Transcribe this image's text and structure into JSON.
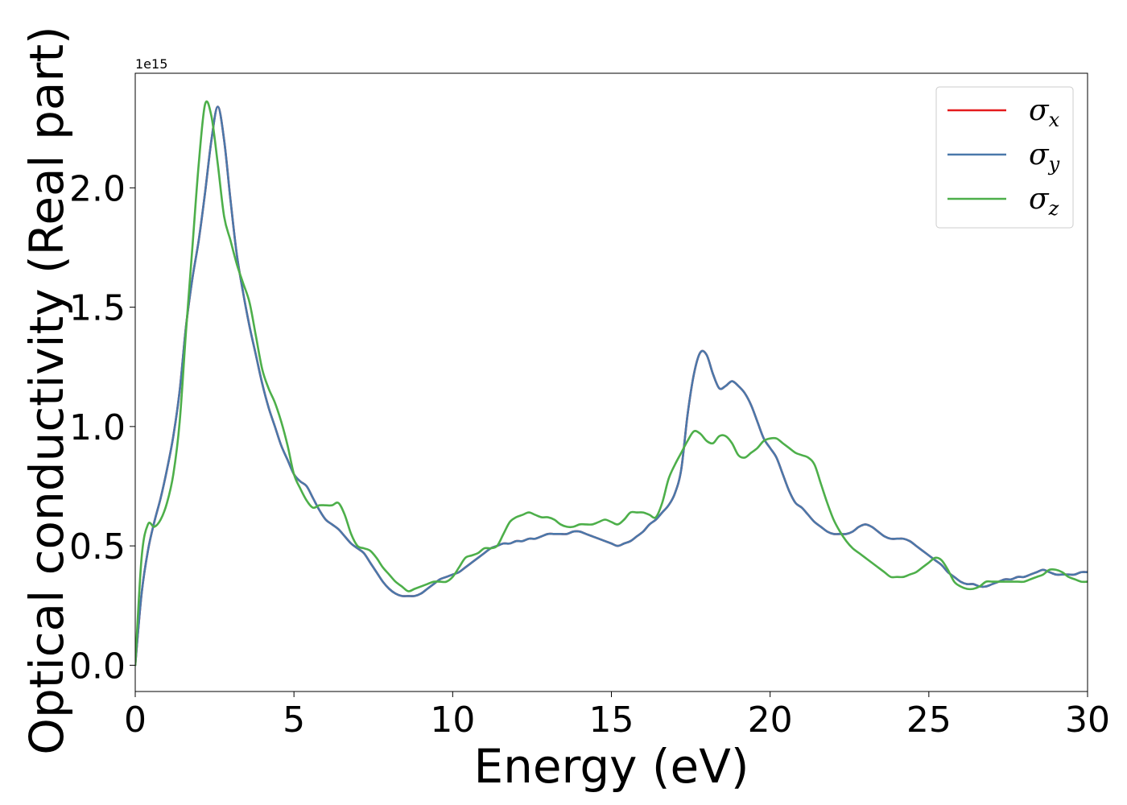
{
  "chart_data": {
    "type": "line",
    "xlabel": "Energy (eV)",
    "ylabel": "Optical conductivity (Real part)",
    "y_offset_label": "1e15",
    "xlim": [
      0,
      30
    ],
    "ylim": [
      -0.11,
      2.48
    ],
    "x_ticks": [
      0,
      5,
      10,
      15,
      20,
      25,
      30
    ],
    "x_tick_labels": [
      "0",
      "5",
      "10",
      "15",
      "20",
      "25",
      "30"
    ],
    "y_ticks": [
      0.0,
      0.5,
      1.0,
      1.5,
      2.0
    ],
    "y_tick_labels": [
      "0.0",
      "0.5",
      "1.0",
      "1.5",
      "2.0"
    ],
    "grid": false,
    "legend_position": "top-right",
    "series": [
      {
        "name": "σ",
        "subscript": "x",
        "color": "#e41a1c",
        "x": [
          0,
          0.2,
          0.4,
          0.6,
          0.8,
          1.0,
          1.2,
          1.4,
          1.6,
          1.8,
          2.0,
          2.2,
          2.4,
          2.6,
          2.8,
          3.0,
          3.2,
          3.4,
          3.6,
          3.8,
          4.0,
          4.2,
          4.4,
          4.6,
          4.8,
          5.0,
          5.2,
          5.4,
          5.6,
          5.8,
          6.0,
          6.2,
          6.4,
          6.6,
          6.8,
          7.0,
          7.2,
          7.4,
          7.6,
          7.8,
          8.0,
          8.2,
          8.4,
          8.6,
          8.8,
          9.0,
          9.2,
          9.4,
          9.6,
          9.8,
          10.0,
          10.2,
          10.4,
          10.6,
          10.8,
          11.0,
          11.2,
          11.4,
          11.6,
          11.8,
          12.0,
          12.2,
          12.4,
          12.6,
          12.8,
          13.0,
          13.2,
          13.4,
          13.6,
          13.8,
          14.0,
          14.2,
          14.4,
          14.6,
          14.8,
          15.0,
          15.2,
          15.4,
          15.6,
          15.8,
          16.0,
          16.2,
          16.4,
          16.6,
          16.8,
          17.0,
          17.2,
          17.4,
          17.6,
          17.8,
          18.0,
          18.2,
          18.4,
          18.6,
          18.8,
          19.0,
          19.2,
          19.4,
          19.6,
          19.8,
          20.0,
          20.2,
          20.4,
          20.6,
          20.8,
          21.0,
          21.2,
          21.4,
          21.6,
          21.8,
          22.0,
          22.2,
          22.4,
          22.6,
          22.8,
          23.0,
          23.2,
          23.4,
          23.6,
          23.8,
          24.0,
          24.2,
          24.4,
          24.6,
          24.8,
          25.0,
          25.2,
          25.4,
          25.6,
          25.8,
          26.0,
          26.2,
          26.4,
          26.6,
          26.8,
          27.0,
          27.2,
          27.4,
          27.6,
          27.8,
          28.0,
          28.2,
          28.4,
          28.6,
          28.8,
          29.0,
          29.2,
          29.4,
          29.6,
          29.8,
          30.0
        ],
        "y": [
          0.0,
          0.3,
          0.48,
          0.6,
          0.7,
          0.82,
          0.96,
          1.15,
          1.42,
          1.62,
          1.78,
          1.98,
          2.2,
          2.34,
          2.2,
          1.95,
          1.72,
          1.56,
          1.42,
          1.3,
          1.18,
          1.08,
          1.0,
          0.92,
          0.86,
          0.8,
          0.77,
          0.75,
          0.7,
          0.65,
          0.61,
          0.59,
          0.57,
          0.54,
          0.51,
          0.49,
          0.47,
          0.43,
          0.39,
          0.35,
          0.32,
          0.3,
          0.29,
          0.29,
          0.29,
          0.3,
          0.32,
          0.34,
          0.36,
          0.37,
          0.38,
          0.39,
          0.41,
          0.43,
          0.45,
          0.47,
          0.49,
          0.5,
          0.51,
          0.51,
          0.52,
          0.52,
          0.53,
          0.53,
          0.54,
          0.55,
          0.55,
          0.55,
          0.55,
          0.56,
          0.56,
          0.55,
          0.54,
          0.53,
          0.52,
          0.51,
          0.5,
          0.51,
          0.52,
          0.54,
          0.56,
          0.59,
          0.61,
          0.64,
          0.67,
          0.72,
          0.82,
          1.05,
          1.22,
          1.31,
          1.3,
          1.22,
          1.16,
          1.17,
          1.19,
          1.17,
          1.14,
          1.09,
          1.02,
          0.95,
          0.91,
          0.87,
          0.8,
          0.73,
          0.68,
          0.66,
          0.63,
          0.6,
          0.58,
          0.56,
          0.55,
          0.55,
          0.55,
          0.56,
          0.58,
          0.59,
          0.58,
          0.56,
          0.54,
          0.53,
          0.53,
          0.53,
          0.52,
          0.5,
          0.48,
          0.46,
          0.44,
          0.42,
          0.39,
          0.37,
          0.35,
          0.34,
          0.34,
          0.33,
          0.33,
          0.34,
          0.35,
          0.36,
          0.36,
          0.37,
          0.37,
          0.38,
          0.39,
          0.4,
          0.39,
          0.38,
          0.38,
          0.38,
          0.38,
          0.39,
          0.39
        ]
      },
      {
        "name": "σ",
        "subscript": "y",
        "color": "#4a78aa",
        "x": [
          0,
          0.2,
          0.4,
          0.6,
          0.8,
          1.0,
          1.2,
          1.4,
          1.6,
          1.8,
          2.0,
          2.2,
          2.4,
          2.6,
          2.8,
          3.0,
          3.2,
          3.4,
          3.6,
          3.8,
          4.0,
          4.2,
          4.4,
          4.6,
          4.8,
          5.0,
          5.2,
          5.4,
          5.6,
          5.8,
          6.0,
          6.2,
          6.4,
          6.6,
          6.8,
          7.0,
          7.2,
          7.4,
          7.6,
          7.8,
          8.0,
          8.2,
          8.4,
          8.6,
          8.8,
          9.0,
          9.2,
          9.4,
          9.6,
          9.8,
          10.0,
          10.2,
          10.4,
          10.6,
          10.8,
          11.0,
          11.2,
          11.4,
          11.6,
          11.8,
          12.0,
          12.2,
          12.4,
          12.6,
          12.8,
          13.0,
          13.2,
          13.4,
          13.6,
          13.8,
          14.0,
          14.2,
          14.4,
          14.6,
          14.8,
          15.0,
          15.2,
          15.4,
          15.6,
          15.8,
          16.0,
          16.2,
          16.4,
          16.6,
          16.8,
          17.0,
          17.2,
          17.4,
          17.6,
          17.8,
          18.0,
          18.2,
          18.4,
          18.6,
          18.8,
          19.0,
          19.2,
          19.4,
          19.6,
          19.8,
          20.0,
          20.2,
          20.4,
          20.6,
          20.8,
          21.0,
          21.2,
          21.4,
          21.6,
          21.8,
          22.0,
          22.2,
          22.4,
          22.6,
          22.8,
          23.0,
          23.2,
          23.4,
          23.6,
          23.8,
          24.0,
          24.2,
          24.4,
          24.6,
          24.8,
          25.0,
          25.2,
          25.4,
          25.6,
          25.8,
          26.0,
          26.2,
          26.4,
          26.6,
          26.8,
          27.0,
          27.2,
          27.4,
          27.6,
          27.8,
          28.0,
          28.2,
          28.4,
          28.6,
          28.8,
          29.0,
          29.2,
          29.4,
          29.6,
          29.8,
          30.0
        ],
        "y": [
          0.0,
          0.3,
          0.48,
          0.6,
          0.7,
          0.82,
          0.96,
          1.15,
          1.42,
          1.62,
          1.78,
          1.98,
          2.2,
          2.34,
          2.2,
          1.95,
          1.72,
          1.56,
          1.42,
          1.3,
          1.18,
          1.08,
          1.0,
          0.92,
          0.86,
          0.8,
          0.77,
          0.75,
          0.7,
          0.65,
          0.61,
          0.59,
          0.57,
          0.54,
          0.51,
          0.49,
          0.47,
          0.43,
          0.39,
          0.35,
          0.32,
          0.3,
          0.29,
          0.29,
          0.29,
          0.3,
          0.32,
          0.34,
          0.36,
          0.37,
          0.38,
          0.39,
          0.41,
          0.43,
          0.45,
          0.47,
          0.49,
          0.5,
          0.51,
          0.51,
          0.52,
          0.52,
          0.53,
          0.53,
          0.54,
          0.55,
          0.55,
          0.55,
          0.55,
          0.56,
          0.56,
          0.55,
          0.54,
          0.53,
          0.52,
          0.51,
          0.5,
          0.51,
          0.52,
          0.54,
          0.56,
          0.59,
          0.61,
          0.64,
          0.67,
          0.72,
          0.82,
          1.05,
          1.22,
          1.31,
          1.3,
          1.22,
          1.16,
          1.17,
          1.19,
          1.17,
          1.14,
          1.09,
          1.02,
          0.95,
          0.91,
          0.87,
          0.8,
          0.73,
          0.68,
          0.66,
          0.63,
          0.6,
          0.58,
          0.56,
          0.55,
          0.55,
          0.55,
          0.56,
          0.58,
          0.59,
          0.58,
          0.56,
          0.54,
          0.53,
          0.53,
          0.53,
          0.52,
          0.5,
          0.48,
          0.46,
          0.44,
          0.42,
          0.39,
          0.37,
          0.35,
          0.34,
          0.34,
          0.33,
          0.33,
          0.34,
          0.35,
          0.36,
          0.36,
          0.37,
          0.37,
          0.38,
          0.39,
          0.4,
          0.39,
          0.38,
          0.38,
          0.38,
          0.38,
          0.39,
          0.39
        ]
      },
      {
        "name": "σ",
        "subscript": "z",
        "color": "#4daf4a",
        "x": [
          0,
          0.2,
          0.4,
          0.6,
          0.8,
          1.0,
          1.2,
          1.4,
          1.6,
          1.8,
          2.0,
          2.2,
          2.4,
          2.6,
          2.8,
          3.0,
          3.2,
          3.4,
          3.6,
          3.8,
          4.0,
          4.2,
          4.4,
          4.6,
          4.8,
          5.0,
          5.2,
          5.4,
          5.6,
          5.8,
          6.0,
          6.2,
          6.4,
          6.6,
          6.8,
          7.0,
          7.2,
          7.4,
          7.6,
          7.8,
          8.0,
          8.2,
          8.4,
          8.6,
          8.8,
          9.0,
          9.2,
          9.4,
          9.6,
          9.8,
          10.0,
          10.2,
          10.4,
          10.6,
          10.8,
          11.0,
          11.2,
          11.4,
          11.6,
          11.8,
          12.0,
          12.2,
          12.4,
          12.6,
          12.8,
          13.0,
          13.2,
          13.4,
          13.6,
          13.8,
          14.0,
          14.2,
          14.4,
          14.6,
          14.8,
          15.0,
          15.2,
          15.4,
          15.6,
          15.8,
          16.0,
          16.2,
          16.4,
          16.6,
          16.8,
          17.0,
          17.2,
          17.4,
          17.6,
          17.8,
          18.0,
          18.2,
          18.4,
          18.6,
          18.8,
          19.0,
          19.2,
          19.4,
          19.6,
          19.8,
          20.0,
          20.2,
          20.4,
          20.6,
          20.8,
          21.0,
          21.2,
          21.4,
          21.6,
          21.8,
          22.0,
          22.2,
          22.4,
          22.6,
          22.8,
          23.0,
          23.2,
          23.4,
          23.6,
          23.8,
          24.0,
          24.2,
          24.4,
          24.6,
          24.8,
          25.0,
          25.2,
          25.4,
          25.6,
          25.8,
          26.0,
          26.2,
          26.4,
          26.6,
          26.8,
          27.0,
          27.2,
          27.4,
          27.6,
          27.8,
          28.0,
          28.2,
          28.4,
          28.6,
          28.8,
          29.0,
          29.2,
          29.4,
          29.6,
          29.8,
          30.0
        ],
        "y": [
          0.0,
          0.45,
          0.59,
          0.58,
          0.61,
          0.68,
          0.8,
          1.02,
          1.4,
          1.75,
          2.1,
          2.35,
          2.3,
          2.1,
          1.88,
          1.78,
          1.68,
          1.6,
          1.52,
          1.38,
          1.24,
          1.16,
          1.1,
          1.02,
          0.92,
          0.8,
          0.74,
          0.69,
          0.66,
          0.67,
          0.67,
          0.67,
          0.68,
          0.63,
          0.55,
          0.5,
          0.49,
          0.48,
          0.45,
          0.41,
          0.38,
          0.35,
          0.33,
          0.31,
          0.32,
          0.33,
          0.34,
          0.35,
          0.35,
          0.35,
          0.37,
          0.41,
          0.45,
          0.46,
          0.47,
          0.49,
          0.49,
          0.5,
          0.55,
          0.6,
          0.62,
          0.63,
          0.64,
          0.63,
          0.62,
          0.62,
          0.61,
          0.59,
          0.58,
          0.58,
          0.59,
          0.59,
          0.59,
          0.6,
          0.61,
          0.6,
          0.59,
          0.61,
          0.64,
          0.64,
          0.64,
          0.63,
          0.62,
          0.68,
          0.78,
          0.84,
          0.89,
          0.94,
          0.98,
          0.97,
          0.94,
          0.93,
          0.96,
          0.96,
          0.93,
          0.88,
          0.87,
          0.89,
          0.91,
          0.94,
          0.95,
          0.95,
          0.93,
          0.91,
          0.89,
          0.88,
          0.87,
          0.84,
          0.76,
          0.68,
          0.61,
          0.56,
          0.52,
          0.49,
          0.47,
          0.45,
          0.43,
          0.41,
          0.39,
          0.37,
          0.37,
          0.37,
          0.38,
          0.39,
          0.41,
          0.43,
          0.45,
          0.44,
          0.4,
          0.35,
          0.33,
          0.32,
          0.32,
          0.33,
          0.35,
          0.35,
          0.35,
          0.35,
          0.35,
          0.35,
          0.35,
          0.36,
          0.37,
          0.38,
          0.4,
          0.4,
          0.39,
          0.37,
          0.36,
          0.35,
          0.35
        ]
      }
    ]
  }
}
